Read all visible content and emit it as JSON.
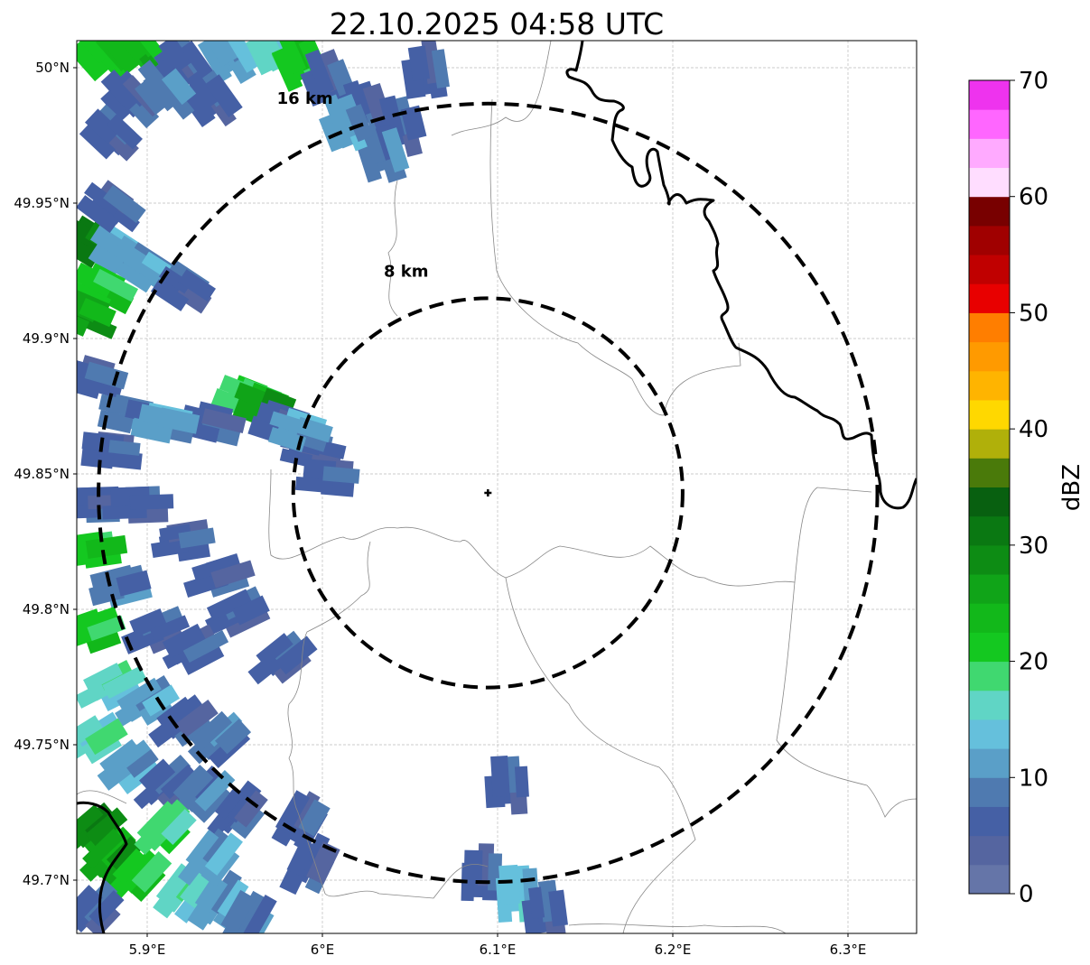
{
  "chart_data": {
    "type": "heatmap",
    "title": "22.10.2025 04:58 UTC",
    "xlim": [
      5.86,
      6.34
    ],
    "ylim": [
      49.68,
      50.01
    ],
    "x_ticks": [
      5.9,
      6.0,
      6.1,
      6.2,
      6.3
    ],
    "x_tick_labels": [
      "5.9°E",
      "6°E",
      "6.1°E",
      "6.2°E",
      "6.3°E"
    ],
    "y_ticks": [
      50.0,
      49.95,
      49.9,
      49.85,
      49.8,
      49.75,
      49.7
    ],
    "y_tick_labels": [
      "50°N",
      "49.95°N",
      "49.9°N",
      "49.85°N",
      "49.8°N",
      "49.75°N",
      "49.7°N"
    ],
    "grid": true,
    "radar_site": {
      "lon": 6.0945,
      "lat": 49.843
    },
    "range_rings": [
      {
        "km": 8,
        "label": "8 km"
      },
      {
        "km": 16,
        "label": "16 km"
      }
    ],
    "colorbar": {
      "label": "dBZ",
      "min": 0,
      "max": 70,
      "step": 2.5,
      "tick_values": [
        0,
        10,
        20,
        30,
        40,
        50,
        60,
        70
      ],
      "tick_labels": [
        "0",
        "10",
        "20",
        "30",
        "40",
        "50",
        "60",
        "70"
      ],
      "colors": [
        "#6575a8",
        "#5565a0",
        "#4560a5",
        "#4f7ab0",
        "#5a9fc8",
        "#65c0dc",
        "#60d5c5",
        "#40d870",
        "#14c820",
        "#12b81a",
        "#10a418",
        "#0d8c14",
        "#0a7812",
        "#086010",
        "#4a7a0a",
        "#b0b00a",
        "#ffd800",
        "#ffb400",
        "#ff9a00",
        "#ff7e00",
        "#e80000",
        "#c00000",
        "#a00000",
        "#780000",
        "#ffddff",
        "#ffaaff",
        "#ff66ff",
        "#ee33ee"
      ]
    },
    "echoes": [
      [
        5.8727,
        50.005,
        22
      ],
      [
        5.8933,
        50.0067,
        24
      ],
      [
        5.9191,
        50.0017,
        5
      ],
      [
        5.9448,
        50.005,
        10
      ],
      [
        5.9706,
        50.0067,
        15
      ],
      [
        5.9861,
        50.0017,
        20
      ],
      [
        6.0015,
        49.995,
        5
      ],
      [
        6.0222,
        49.985,
        5
      ],
      [
        6.0428,
        49.9783,
        5
      ],
      [
        6.0582,
        49.9983,
        5
      ],
      [
        5.8881,
        49.9883,
        5
      ],
      [
        5.8778,
        49.975,
        5
      ],
      [
        6.0325,
        49.9683,
        8
      ],
      [
        6.0119,
        49.9783,
        12
      ],
      [
        5.9345,
        49.9883,
        5
      ],
      [
        5.9088,
        49.9917,
        8
      ],
      [
        5.8675,
        49.935,
        30
      ],
      [
        5.883,
        49.9317,
        10
      ],
      [
        5.8985,
        49.925,
        12
      ],
      [
        5.8727,
        49.9183,
        20
      ],
      [
        5.9191,
        49.9183,
        5
      ],
      [
        5.8778,
        49.9483,
        5
      ],
      [
        5.8624,
        49.9083,
        25
      ],
      [
        5.9552,
        49.8783,
        18
      ],
      [
        5.9655,
        49.875,
        25
      ],
      [
        5.9758,
        49.8683,
        5
      ],
      [
        5.9912,
        49.8583,
        5
      ],
      [
        6.0015,
        49.8483,
        5
      ],
      [
        5.9345,
        49.8683,
        5
      ],
      [
        5.9861,
        49.865,
        12
      ],
      [
        5.8675,
        49.885,
        5
      ],
      [
        5.8881,
        49.8717,
        8
      ],
      [
        5.9088,
        49.8683,
        12
      ],
      [
        5.8778,
        49.8583,
        5
      ],
      [
        5.8675,
        49.8383,
        5
      ],
      [
        5.8933,
        49.8383,
        5
      ],
      [
        5.9191,
        49.825,
        5
      ],
      [
        5.9397,
        49.8117,
        5
      ],
      [
        5.95,
        49.7983,
        5
      ],
      [
        5.8675,
        49.8217,
        20
      ],
      [
        5.883,
        49.8083,
        8
      ],
      [
        5.9036,
        49.7917,
        5
      ],
      [
        5.9242,
        49.785,
        5
      ],
      [
        5.8675,
        49.7917,
        20
      ],
      [
        5.8778,
        49.7717,
        15
      ],
      [
        5.8985,
        49.765,
        10
      ],
      [
        5.9191,
        49.7583,
        5
      ],
      [
        5.9397,
        49.7517,
        8
      ],
      [
        5.8675,
        49.7517,
        15
      ],
      [
        5.8881,
        49.7417,
        12
      ],
      [
        5.9088,
        49.735,
        5
      ],
      [
        5.9294,
        49.7317,
        8
      ],
      [
        5.95,
        49.725,
        5
      ],
      [
        5.8675,
        49.7183,
        28
      ],
      [
        5.8778,
        49.7083,
        25
      ],
      [
        5.8933,
        49.7017,
        20
      ],
      [
        5.9191,
        49.695,
        15
      ],
      [
        5.9397,
        49.6917,
        10
      ],
      [
        5.9552,
        49.685,
        8
      ],
      [
        5.8675,
        49.6883,
        5
      ],
      [
        5.9345,
        49.7083,
        12
      ],
      [
        5.9088,
        49.7183,
        18
      ],
      [
        5.9758,
        49.7817,
        5
      ],
      [
        5.9861,
        49.7217,
        5
      ],
      [
        5.9912,
        49.705,
        5
      ],
      [
        6.1046,
        49.735,
        5
      ],
      [
        6.0892,
        49.7017,
        5
      ],
      [
        6.1098,
        49.695,
        14
      ],
      [
        6.1253,
        49.6883,
        5
      ]
    ]
  }
}
